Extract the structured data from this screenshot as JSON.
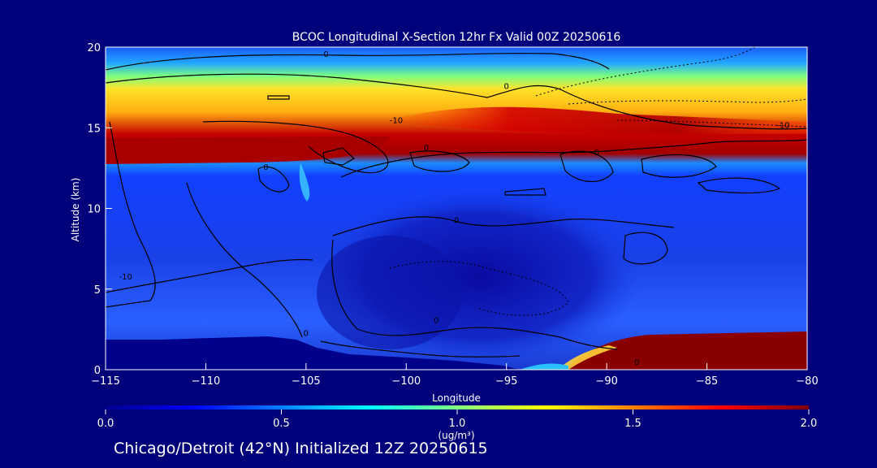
{
  "chart_data": {
    "type": "heatmap",
    "title": "BCOC Longitudinal X-Section 12hr  Fx Valid 00Z 20250616",
    "xlabel": "Longitude",
    "ylabel": "Altitude (km)",
    "xlim": [
      -115,
      -80
    ],
    "ylim": [
      0,
      20
    ],
    "x_ticks": [
      -115,
      -110,
      -105,
      -100,
      -95,
      -90,
      -85,
      -80
    ],
    "y_ticks": [
      0,
      5,
      10,
      15,
      20
    ],
    "colorbar": {
      "min": 0.0,
      "max": 2.0,
      "ticks": [
        0.0,
        0.5,
        1.0,
        1.5,
        2.0
      ],
      "tick_labels": [
        "0.0",
        "0.5",
        "1.0",
        "1.5",
        "2.0"
      ],
      "unit_label": "(ug/m³)"
    },
    "contour_labels": [
      {
        "text": "0",
        "lon": -104,
        "alt": 19.6
      },
      {
        "text": "0",
        "lon": -95,
        "alt": 17.6
      },
      {
        "text": "-10",
        "lon": -100.5,
        "alt": 15.5
      },
      {
        "text": "0",
        "lon": -99,
        "alt": 13.8
      },
      {
        "text": "0",
        "lon": -107,
        "alt": 12.6
      },
      {
        "text": "0",
        "lon": -90.5,
        "alt": 13.5
      },
      {
        "text": "0",
        "lon": -97.5,
        "alt": 9.3
      },
      {
        "text": "-10",
        "lon": -114,
        "alt": 5.8
      },
      {
        "text": "0",
        "lon": -105,
        "alt": 2.3
      },
      {
        "text": "0",
        "lon": -98.5,
        "alt": 3.1
      },
      {
        "text": "-10",
        "lon": -81.2,
        "alt": 15.2
      },
      {
        "text": "0",
        "lon": -88.5,
        "alt": 0.5
      }
    ]
  },
  "footer": {
    "caption": "Chicago/Detroit (42°N) Initialized 12Z 20250615"
  }
}
